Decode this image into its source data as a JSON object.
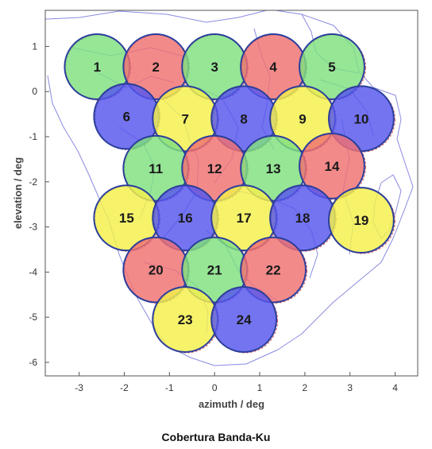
{
  "caption": "Cobertura Banda-Ku",
  "chart_data": {
    "type": "scatter",
    "title": "",
    "xlabel": "azimuth / deg",
    "ylabel": "elevation / deg",
    "xlim": [
      -3.75,
      4.5
    ],
    "ylim": [
      -6.3,
      1.8
    ],
    "xticks": [
      -3,
      -2,
      -1,
      0,
      1,
      2,
      3,
      4
    ],
    "yticks": [
      1,
      0,
      -1,
      -2,
      -3,
      -4,
      -5,
      -6
    ],
    "beam_radius_deg": 0.72,
    "colors": {
      "green": "#7fe07f",
      "red": "#f07070",
      "yellow": "#f4f04a",
      "blue": "#5555ee",
      "outline": "#2b3f9c",
      "map": "#8a8ae0"
    },
    "beams": [
      {
        "label": "1",
        "x": -2.6,
        "y": 0.55,
        "color": "green"
      },
      {
        "label": "2",
        "x": -1.3,
        "y": 0.55,
        "color": "red"
      },
      {
        "label": "3",
        "x": 0.0,
        "y": 0.55,
        "color": "green"
      },
      {
        "label": "4",
        "x": 1.3,
        "y": 0.55,
        "color": "red"
      },
      {
        "label": "5",
        "x": 2.6,
        "y": 0.55,
        "color": "green"
      },
      {
        "label": "6",
        "x": -1.95,
        "y": -0.55,
        "color": "blue"
      },
      {
        "label": "7",
        "x": -0.65,
        "y": -0.6,
        "color": "yellow"
      },
      {
        "label": "8",
        "x": 0.65,
        "y": -0.6,
        "color": "blue"
      },
      {
        "label": "9",
        "x": 1.95,
        "y": -0.6,
        "color": "yellow"
      },
      {
        "label": "10",
        "x": 3.25,
        "y": -0.6,
        "color": "blue"
      },
      {
        "label": "11",
        "x": -1.3,
        "y": -1.7,
        "color": "green"
      },
      {
        "label": "12",
        "x": 0.0,
        "y": -1.7,
        "color": "red"
      },
      {
        "label": "13",
        "x": 1.3,
        "y": -1.7,
        "color": "green"
      },
      {
        "label": "14",
        "x": 2.6,
        "y": -1.65,
        "color": "red"
      },
      {
        "label": "15",
        "x": -1.95,
        "y": -2.8,
        "color": "yellow"
      },
      {
        "label": "16",
        "x": -0.65,
        "y": -2.8,
        "color": "blue"
      },
      {
        "label": "17",
        "x": 0.65,
        "y": -2.8,
        "color": "yellow"
      },
      {
        "label": "18",
        "x": 1.95,
        "y": -2.8,
        "color": "blue"
      },
      {
        "label": "19",
        "x": 3.25,
        "y": -2.85,
        "color": "yellow"
      },
      {
        "label": "20",
        "x": -1.3,
        "y": -3.95,
        "color": "red"
      },
      {
        "label": "21",
        "x": 0.0,
        "y": -3.95,
        "color": "green"
      },
      {
        "label": "22",
        "x": 1.3,
        "y": -3.95,
        "color": "red"
      },
      {
        "label": "23",
        "x": -0.65,
        "y": -5.05,
        "color": "yellow"
      },
      {
        "label": "24",
        "x": 0.65,
        "y": -5.05,
        "color": "blue"
      }
    ],
    "grid": false,
    "legend": "none"
  }
}
